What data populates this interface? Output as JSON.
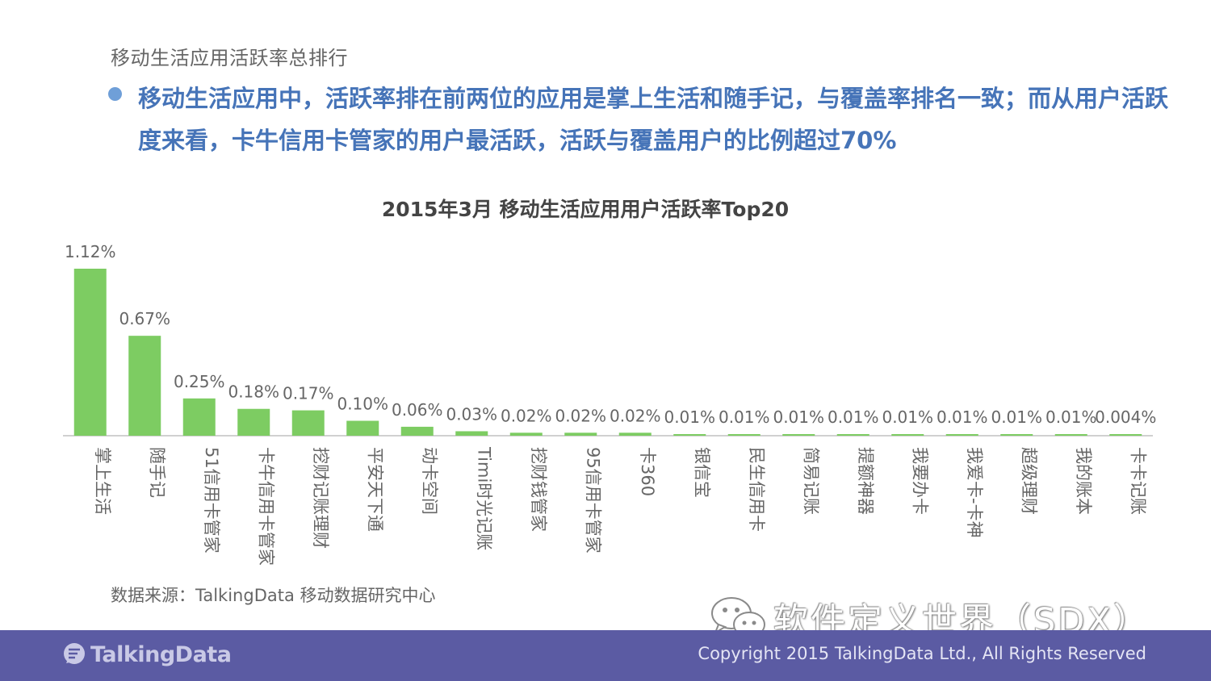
{
  "slide": {
    "section_label": "移动生活应用活跃率总排行",
    "bullet_text": "移动生活应用中，活跃率排在前两位的应用是掌上生活和随手记，与覆盖率排名一致；而从用户活跃度来看，卡牛信用卡管家的用户最活跃，活跃与覆盖用户的比例超过70%",
    "source": "数据来源：TalkingData 移动数据研究中心",
    "watermark": "软件定义世界（SDX）",
    "brand_name": "TalkingData",
    "copyright": "Copyright 2015 TalkingData Ltd., All Rights Reserved"
  },
  "colors": {
    "bar": "#7dcc62",
    "bullet_text": "#4674b8",
    "footer": "#5b5ba3"
  },
  "icons": {
    "bullet": "bullet-dot-icon",
    "watermark": "wechat-icon",
    "brand": "talkingdata-logo-icon"
  },
  "chart_data": {
    "type": "bar",
    "title": "2015年3月 移动生活应用用户活跃率Top20",
    "categories": [
      "掌上生活",
      "随手记",
      "51信用卡管家",
      "卡牛信用卡管家",
      "挖财记账理财",
      "平安天下通",
      "动卡空间",
      "Timi时光记账",
      "挖财钱管家",
      "95信用卡管家",
      "卡360",
      "银信宝",
      "民生信用卡",
      "简易记账",
      "提额神器",
      "我要办卡",
      "我爱卡-卡神",
      "超级理财",
      "我的账本",
      "卡卡记账"
    ],
    "values": [
      1.12,
      0.67,
      0.25,
      0.18,
      0.17,
      0.1,
      0.06,
      0.03,
      0.02,
      0.02,
      0.02,
      0.01,
      0.01,
      0.01,
      0.01,
      0.01,
      0.01,
      0.01,
      0.01,
      0.004
    ],
    "value_labels": [
      "1.12%",
      "0.67%",
      "0.25%",
      "0.18%",
      "0.17%",
      "0.10%",
      "0.06%",
      "0.03%",
      "0.02%",
      "0.02%",
      "0.02%",
      "0.01%",
      "0.01%",
      "0.01%",
      "0.01%",
      "0.01%",
      "0.01%",
      "0.01%",
      "0.01%",
      "0.004%"
    ],
    "unit": "%",
    "ylim": [
      0,
      1.12
    ],
    "grid": false,
    "legend": "none"
  }
}
